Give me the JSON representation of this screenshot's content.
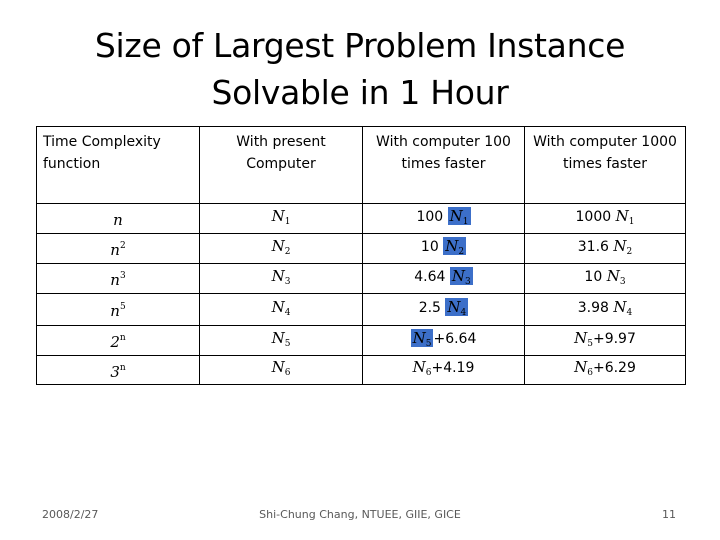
{
  "title": {
    "line1": "Size of Largest Problem Instance",
    "line2": "Solvable in 1 Hour"
  },
  "table": {
    "headers": [
      "Time Complexity function",
      "With present Computer",
      "With computer 100 times faster",
      "With computer 1000 times faster"
    ],
    "rows": [
      {
        "fn_base": "n",
        "fn_exp": "",
        "present": "N",
        "present_sub": "1",
        "x100_pre": "100",
        "x100_sym": "N",
        "x100_sub": "1",
        "x100_post": "",
        "x1000_pre": "1000",
        "x1000_sym": "N",
        "x1000_sub": "1",
        "x1000_post": ""
      },
      {
        "fn_base": "n",
        "fn_exp": "2",
        "present": "N",
        "present_sub": "2",
        "x100_pre": "10",
        "x100_sym": "N",
        "x100_sub": "2",
        "x100_post": "",
        "x1000_pre": "31.6",
        "x1000_sym": "N",
        "x1000_sub": "2",
        "x1000_post": ""
      },
      {
        "fn_base": "n",
        "fn_exp": "3",
        "present": "N",
        "present_sub": "3",
        "x100_pre": "4.64",
        "x100_sym": "N",
        "x100_sub": "3",
        "x100_post": "",
        "x1000_pre": "10",
        "x1000_sym": "N",
        "x1000_sub": "3",
        "x1000_post": ""
      },
      {
        "fn_base": "n",
        "fn_exp": "5",
        "present": "N",
        "present_sub": "4",
        "x100_pre": "2.5",
        "x100_sym": "N",
        "x100_sub": "4",
        "x100_post": "",
        "x1000_pre": "3.98",
        "x1000_sym": "N",
        "x1000_sub": "4",
        "x1000_post": ""
      },
      {
        "fn_base": "2",
        "fn_exp": "n",
        "present": "N",
        "present_sub": "5",
        "x100_pre": "",
        "x100_sym": "N",
        "x100_sub": "5",
        "x100_post": "+6.64",
        "x1000_pre": "",
        "x1000_sym": "N",
        "x1000_sub": "5",
        "x1000_post": "+9.97"
      },
      {
        "fn_base": "3",
        "fn_exp": "n",
        "present": "N",
        "present_sub": "6",
        "x100_pre": "",
        "x100_sym": "N",
        "x100_sub": "6",
        "x100_post": "+4.19",
        "x1000_pre": "",
        "x1000_sym": "N",
        "x1000_sub": "6",
        "x1000_post": "+6.29"
      }
    ]
  },
  "footer": {
    "date": "2008/2/27",
    "author": "Shi-Chung Chang, NTUEE, GIIE, GICE",
    "page": "11"
  },
  "colors": {
    "highlight": "#3c6fc9",
    "footer_text": "#595959"
  }
}
